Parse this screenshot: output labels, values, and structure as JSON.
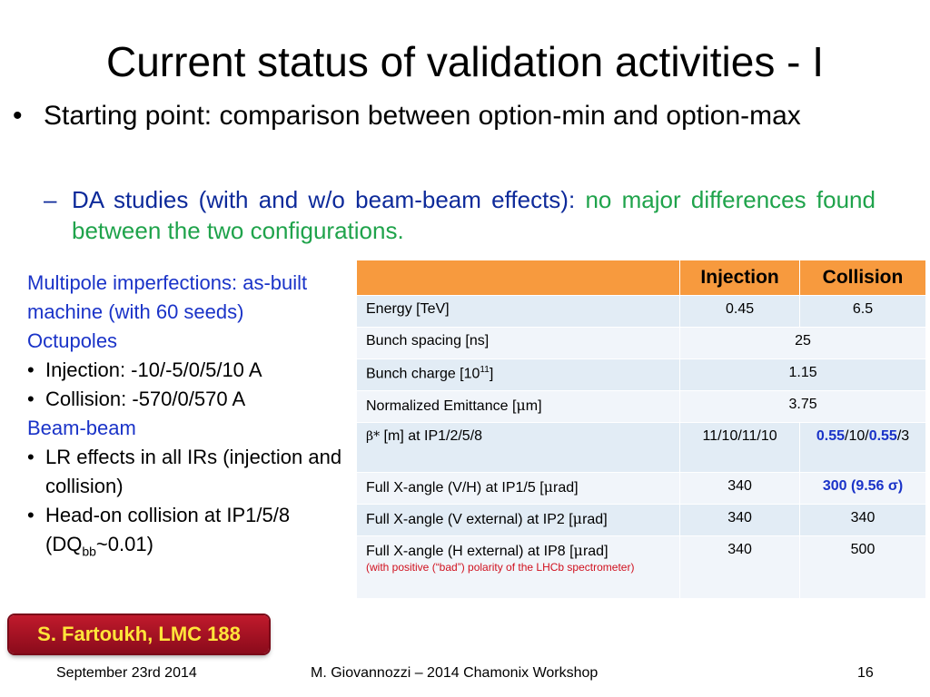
{
  "slide": {
    "title": "Current status of validation activities - I",
    "bullet_symbol": "•",
    "bullet_text": "Starting point: comparison between option-min and option-max",
    "sub_dash": "–",
    "sub_blue": "DA studies (with and w/o beam-beam effects): ",
    "sub_green": "no major differences found between the two configurations."
  },
  "left_panel": {
    "multipole": "Multipole imperfections: as-built machine (with 60 seeds)",
    "octupoles_heading": "Octupoles",
    "octupole_items": [
      "Injection: -10/-5/0/5/10 A",
      "Collision: -570/0/570 A"
    ],
    "beambeam_heading": "Beam-beam",
    "beambeam_item1": "LR effects in all IRs (injection and collision)",
    "beambeam_item2_prefix": "Head-on collision at IP1/5/8 (DQ",
    "beambeam_item2_sub": "bb",
    "beambeam_item2_suffix": "~0.01)"
  },
  "table": {
    "headers": [
      "",
      "Injection",
      "Collision"
    ],
    "rows": [
      {
        "param": "Energy [TeV]",
        "injection": "0.45",
        "collision": "6.5"
      },
      {
        "param": "Bunch spacing [ns]",
        "value": "25"
      },
      {
        "param_prefix": "Bunch charge [10",
        "param_sup": "11",
        "param_suffix": "]",
        "value": "1.15"
      },
      {
        "param_prefix": "Normalized Emittance [",
        "param_greek": "μ",
        "param_suffix": "m]",
        "value": "3.75"
      },
      {
        "param_greek": "β*",
        "param_suffix": " [m] at IP1/2/5/8",
        "injection": "11/10/11/10",
        "collision_b1": "0.55",
        "collision_m": "/10/",
        "collision_b2": "0.55",
        "collision_end": "/3"
      },
      {
        "param_prefix": "Full X-angle (V/H) at IP1/5 [",
        "param_greek": "μ",
        "param_suffix": "rad]",
        "injection": "340",
        "collision": "300 (9.56 σ)"
      },
      {
        "param_prefix": "Full X-angle (V external) at IP2 [",
        "param_greek": "μ",
        "param_suffix": "rad]",
        "injection": "340",
        "collision": "340"
      },
      {
        "param_prefix": "Full X-angle (H external) at IP8 [",
        "param_greek": "μ",
        "param_suffix": "rad]",
        "note": "(with positive (“bad”) polarity of the LHCb spectrometer)",
        "injection": "340",
        "collision": "500"
      }
    ]
  },
  "reference": "S. Fartoukh, LMC 188",
  "footer": {
    "date": "September 23rd 2014",
    "author": "M. Giovannozzi – 2014 Chamonix Workshop",
    "page": "16"
  },
  "colors": {
    "header_orange": "#f79a3e",
    "row_blue": "#e2ecf5",
    "text_blue": "#1a33c8",
    "text_green": "#1fa34b",
    "note_red": "#d0101e",
    "badge_red": "#c01a2c",
    "badge_text": "#ffe43a"
  }
}
